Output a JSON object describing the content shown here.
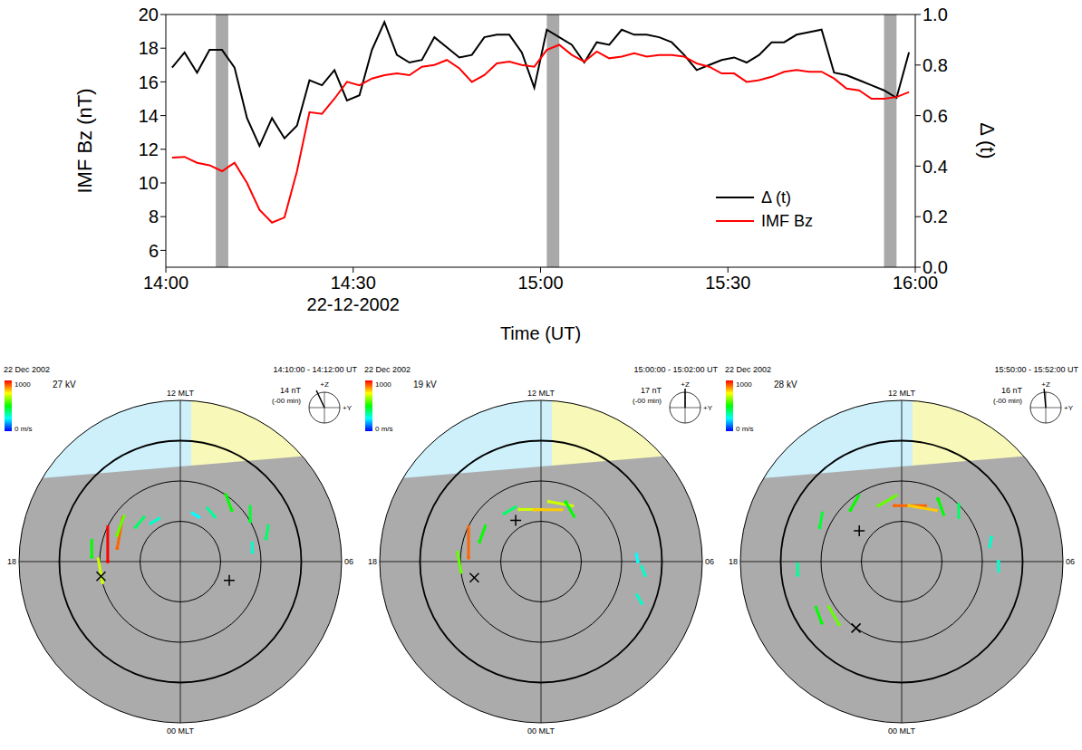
{
  "chart_data": {
    "type": "line",
    "xlabel": "Time (UT)",
    "ylabel": "IMF Bz (nT)",
    "y2label": "Δ (t)",
    "x": [
      1,
      3,
      5,
      7,
      9,
      11,
      13,
      15,
      17,
      19,
      21,
      23,
      25,
      27,
      29,
      31,
      33,
      35,
      37,
      39,
      41,
      43,
      45,
      47,
      49,
      51,
      53,
      55,
      57,
      59,
      61,
      63,
      65,
      67,
      69,
      71,
      73,
      75,
      77,
      79,
      81,
      83,
      85,
      87,
      89,
      91,
      93,
      95,
      97,
      99,
      101,
      103,
      105,
      107,
      109,
      111,
      113,
      115,
      117,
      119
    ],
    "xlim": [
      0,
      120
    ],
    "xticks": [
      {
        "value": 0,
        "label": "14:00"
      },
      {
        "value": 30,
        "label": "14:30"
      },
      {
        "value": 60,
        "label": "15:00"
      },
      {
        "value": 90,
        "label": "15:30"
      },
      {
        "value": 120,
        "label": "16:00"
      }
    ],
    "annotations": [
      {
        "text": "22-12-2002",
        "x": 30
      }
    ],
    "ylim": [
      5,
      20
    ],
    "yticks": [
      6,
      8,
      10,
      12,
      14,
      16,
      18,
      20
    ],
    "y2lim": [
      0,
      1
    ],
    "y2ticks": [
      {
        "value": 0,
        "label": "0.0"
      },
      {
        "value": 0.2,
        "label": "0.2"
      },
      {
        "value": 0.4,
        "label": "0.4"
      },
      {
        "value": 0.6,
        "label": "0.6"
      },
      {
        "value": 0.8,
        "label": "0.8"
      },
      {
        "value": 1,
        "label": "1.0"
      }
    ],
    "shaded_intervals": [
      [
        8,
        10
      ],
      [
        61,
        63
      ],
      [
        115,
        117
      ]
    ],
    "legend": "lower right",
    "series": [
      {
        "name": "Δ (t)",
        "color": "#000000",
        "axis": "y2",
        "values": [
          0.79,
          0.85,
          0.77,
          0.86,
          0.86,
          0.79,
          0.59,
          0.48,
          0.59,
          0.51,
          0.56,
          0.74,
          0.72,
          0.78,
          0.66,
          0.68,
          0.86,
          0.97,
          0.84,
          0.81,
          0.82,
          0.91,
          0.87,
          0.83,
          0.84,
          0.91,
          0.92,
          0.92,
          0.85,
          0.71,
          0.94,
          0.91,
          0.88,
          0.81,
          0.89,
          0.88,
          0.94,
          0.92,
          0.92,
          0.91,
          0.89,
          0.84,
          0.78,
          0.8,
          0.82,
          0.83,
          0.81,
          0.84,
          0.89,
          0.89,
          0.92,
          0.93,
          0.94,
          0.77,
          0.76,
          0.74,
          0.72,
          0.7,
          0.67,
          0.85
        ]
      },
      {
        "name": "IMF Bz",
        "color": "#ff0000",
        "values": [
          11.5,
          11.55,
          11.2,
          11.05,
          10.7,
          11.2,
          10.0,
          8.4,
          7.65,
          7.95,
          10.7,
          14.2,
          14.1,
          15.0,
          16.0,
          15.8,
          16.2,
          16.4,
          16.5,
          16.4,
          16.9,
          17.0,
          17.3,
          16.8,
          16.0,
          16.4,
          17.1,
          17.2,
          17.0,
          16.9,
          17.9,
          18.2,
          17.6,
          17.2,
          17.8,
          17.4,
          17.5,
          17.7,
          17.5,
          17.6,
          17.6,
          17.5,
          17.1,
          16.9,
          16.5,
          16.5,
          16.0,
          16.1,
          16.3,
          16.6,
          16.7,
          16.6,
          16.6,
          16.2,
          15.6,
          15.5,
          15.0,
          15.0,
          15.1,
          15.4
        ]
      }
    ]
  },
  "maps": {
    "lat_range": [
      50,
      90
    ],
    "grid_lats": [
      60,
      70,
      80
    ],
    "labels": {
      "noon": "12 MLT",
      "dusk": "18",
      "dawn": "06",
      "midnight": "00 MLT",
      "z": "+Z",
      "y": "+Y"
    },
    "colorbar": {
      "min": 0,
      "max": 1000,
      "max_label": "1000",
      "min_label": "0 m/s"
    },
    "panels": [
      {
        "date": "22 Dec 2002",
        "potential": "27 kV",
        "time": "14:10:00 - 14:12:00 UT",
        "imf": "14 nT",
        "delay": "(-00 min)",
        "clock_angle": -25,
        "potential_min": {
          "mlt": 18.7,
          "lat": 70
        },
        "potential_max": {
          "mlt": 4.6,
          "lat": 77
        },
        "vectors": [
          [
            18.0,
            72,
            1000,
            0
          ],
          [
            17.2,
            74,
            900,
            10
          ],
          [
            19.0,
            70,
            700,
            -10
          ],
          [
            16.5,
            73,
            600,
            20
          ],
          [
            15.5,
            76,
            400,
            40
          ],
          [
            17.8,
            68,
            500,
            0
          ],
          [
            14.5,
            78,
            300,
            60
          ],
          [
            9.0,
            72,
            500,
            -20
          ],
          [
            8.0,
            70,
            450,
            0
          ],
          [
            7.0,
            68,
            400,
            10
          ],
          [
            9.5,
            76,
            350,
            -40
          ],
          [
            10.5,
            78,
            250,
            -60
          ],
          [
            6.5,
            72,
            300,
            0
          ]
        ]
      },
      {
        "date": "22 Dec 2002",
        "potential": "19 kV",
        "time": "15:00:00 - 15:02:00 UT",
        "imf": "17 nT",
        "delay": "(-00 min)",
        "clock_angle": 0,
        "potential_min": {
          "mlt": 18.9,
          "lat": 73
        },
        "potential_max": {
          "mlt": 14.1,
          "lat": 78
        },
        "vectors": [
          [
            17.8,
            72,
            900,
            0
          ],
          [
            18.5,
            70,
            600,
            -10
          ],
          [
            16.8,
            74,
            500,
            20
          ],
          [
            13.5,
            76,
            700,
            90
          ],
          [
            12.5,
            77,
            800,
            90
          ],
          [
            11.5,
            75,
            700,
            100
          ],
          [
            10.5,
            74,
            500,
            150
          ],
          [
            14.5,
            75,
            400,
            60
          ],
          [
            5.5,
            64,
            300,
            -20
          ],
          [
            4.5,
            63,
            300,
            -30
          ],
          [
            6.0,
            66,
            250,
            -10
          ]
        ]
      },
      {
        "date": "22 Dec 2002",
        "potential": "28 kV",
        "time": "15:50:00 - 15:52:00 UT",
        "imf": "16 nT",
        "delay": "(-00 min)",
        "clock_angle": -5,
        "potential_min": {
          "mlt": 21.7,
          "lat": 70
        },
        "potential_max": {
          "mlt": 15.6,
          "lat": 77
        },
        "vectors": [
          [
            12.5,
            76,
            900,
            90
          ],
          [
            11.5,
            76,
            800,
            100
          ],
          [
            13.5,
            75,
            600,
            60
          ],
          [
            15,
            72,
            500,
            30
          ],
          [
            16.5,
            68,
            450,
            10
          ],
          [
            18.5,
            64,
            350,
            0
          ],
          [
            20.5,
            65,
            500,
            -20
          ],
          [
            21,
            68,
            600,
            -30
          ],
          [
            10,
            72,
            500,
            160
          ],
          [
            9,
            70,
            400,
            180
          ],
          [
            7,
            67,
            300,
            -170
          ],
          [
            6,
            66,
            300,
            180
          ]
        ]
      }
    ]
  }
}
